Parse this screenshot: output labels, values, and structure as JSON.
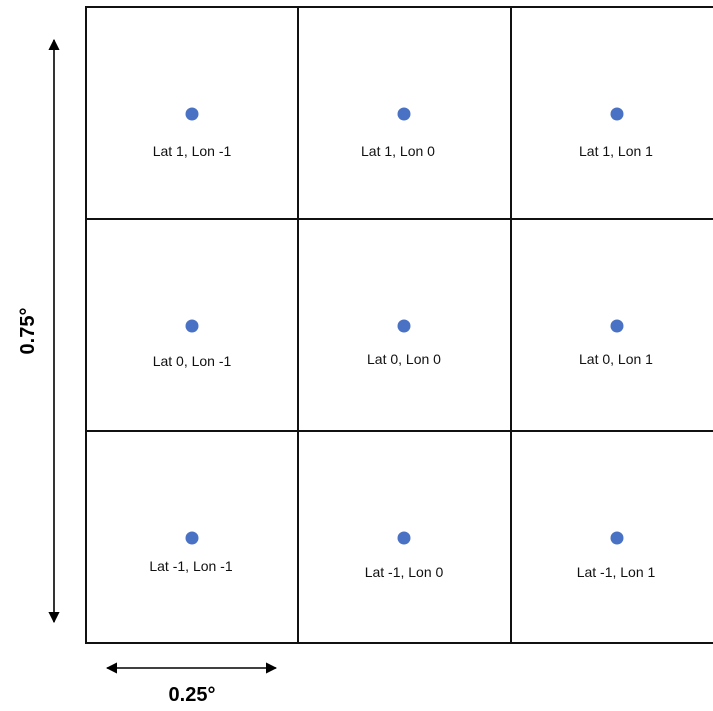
{
  "grid": {
    "rows": 3,
    "cols": 3,
    "cells": [
      {
        "label": "Lat 1, Lon -1"
      },
      {
        "label": "Lat 1, Lon 0"
      },
      {
        "label": "Lat 1, Lon 1"
      },
      {
        "label": "Lat 0, Lon -1"
      },
      {
        "label": "Lat 0, Lon 0"
      },
      {
        "label": "Lat 0, Lon 1"
      },
      {
        "label": "Lat -1, Lon -1"
      },
      {
        "label": "Lat -1, Lon 0"
      },
      {
        "label": "Lat -1, Lon 1"
      }
    ]
  },
  "dimensions": {
    "vertical_label": "0.75°",
    "horizontal_label": "0.25°"
  },
  "colors": {
    "point": "#4a72c4",
    "grid_line": "#111111",
    "arrow": "#000000"
  }
}
